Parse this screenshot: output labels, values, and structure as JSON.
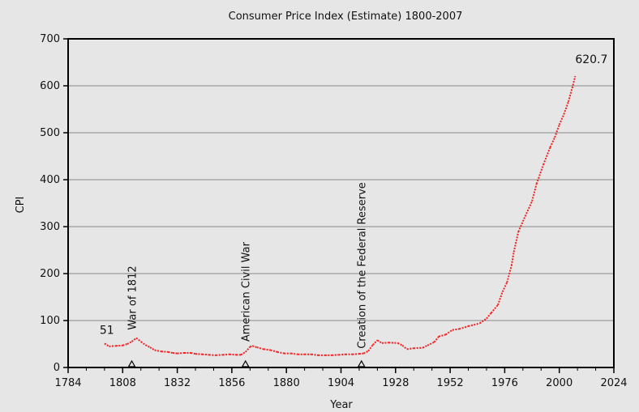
{
  "chart_data": {
    "type": "line",
    "title": "Consumer Price Index (Estimate) 1800-2007",
    "xlabel": "Year",
    "ylabel": "CPI",
    "xlim": [
      1784,
      2024
    ],
    "ylim": [
      0,
      700
    ],
    "x_ticks": [
      1784,
      1808,
      1832,
      1856,
      1880,
      1904,
      1928,
      1952,
      1976,
      2000,
      2024
    ],
    "y_ticks": [
      0,
      100,
      200,
      300,
      400,
      500,
      600,
      700
    ],
    "grid": "horizontal",
    "legend": "none",
    "series": [
      {
        "color": "#ee2222",
        "style": "dotted",
        "points": [
          [
            1800,
            51
          ],
          [
            1802,
            45
          ],
          [
            1805,
            46
          ],
          [
            1808,
            47
          ],
          [
            1810,
            50
          ],
          [
            1812,
            55
          ],
          [
            1814,
            63
          ],
          [
            1816,
            55
          ],
          [
            1818,
            48
          ],
          [
            1820,
            43
          ],
          [
            1822,
            37
          ],
          [
            1825,
            34
          ],
          [
            1828,
            33
          ],
          [
            1830,
            31
          ],
          [
            1832,
            30
          ],
          [
            1835,
            31
          ],
          [
            1838,
            31
          ],
          [
            1840,
            29
          ],
          [
            1843,
            28
          ],
          [
            1846,
            27
          ],
          [
            1849,
            26
          ],
          [
            1852,
            27
          ],
          [
            1855,
            28
          ],
          [
            1858,
            27
          ],
          [
            1860,
            27
          ],
          [
            1862,
            33
          ],
          [
            1864,
            44
          ],
          [
            1865,
            46
          ],
          [
            1867,
            43
          ],
          [
            1870,
            39
          ],
          [
            1873,
            37
          ],
          [
            1876,
            33
          ],
          [
            1879,
            30
          ],
          [
            1882,
            30
          ],
          [
            1885,
            28
          ],
          [
            1888,
            28
          ],
          [
            1891,
            28
          ],
          [
            1894,
            26
          ],
          [
            1897,
            26
          ],
          [
            1900,
            26
          ],
          [
            1903,
            27
          ],
          [
            1906,
            28
          ],
          [
            1909,
            28
          ],
          [
            1912,
            29
          ],
          [
            1914,
            30
          ],
          [
            1916,
            35
          ],
          [
            1918,
            48
          ],
          [
            1920,
            58
          ],
          [
            1922,
            52
          ],
          [
            1925,
            53
          ],
          [
            1929,
            52
          ],
          [
            1931,
            47
          ],
          [
            1933,
            39
          ],
          [
            1936,
            41
          ],
          [
            1940,
            42
          ],
          [
            1942,
            47
          ],
          [
            1945,
            54
          ],
          [
            1947,
            66
          ],
          [
            1950,
            70
          ],
          [
            1953,
            80
          ],
          [
            1956,
            82
          ],
          [
            1960,
            88
          ],
          [
            1965,
            94
          ],
          [
            1968,
            104
          ],
          [
            1970,
            116
          ],
          [
            1973,
            133
          ],
          [
            1975,
            161
          ],
          [
            1977,
            181
          ],
          [
            1979,
            217
          ],
          [
            1980,
            246
          ],
          [
            1982,
            289
          ],
          [
            1985,
            322
          ],
          [
            1988,
            354
          ],
          [
            1990,
            391
          ],
          [
            1993,
            432
          ],
          [
            1996,
            469
          ],
          [
            1998,
            490
          ],
          [
            2000,
            517
          ],
          [
            2002,
            539
          ],
          [
            2004,
            566
          ],
          [
            2006,
            601
          ],
          [
            2007,
            620.7
          ]
        ]
      }
    ],
    "data_labels": [
      {
        "text": "51",
        "x": 1800,
        "y": 51
      },
      {
        "text": "620.7",
        "x": 2007,
        "y": 620.7
      }
    ],
    "annotations": [
      {
        "text": "War of 1812",
        "x": 1812,
        "y": 80
      },
      {
        "text": "American Civil War",
        "x": 1862,
        "y": 55
      },
      {
        "text": "Creation of the Federal Reserve",
        "x": 1913,
        "y": 40
      }
    ]
  }
}
